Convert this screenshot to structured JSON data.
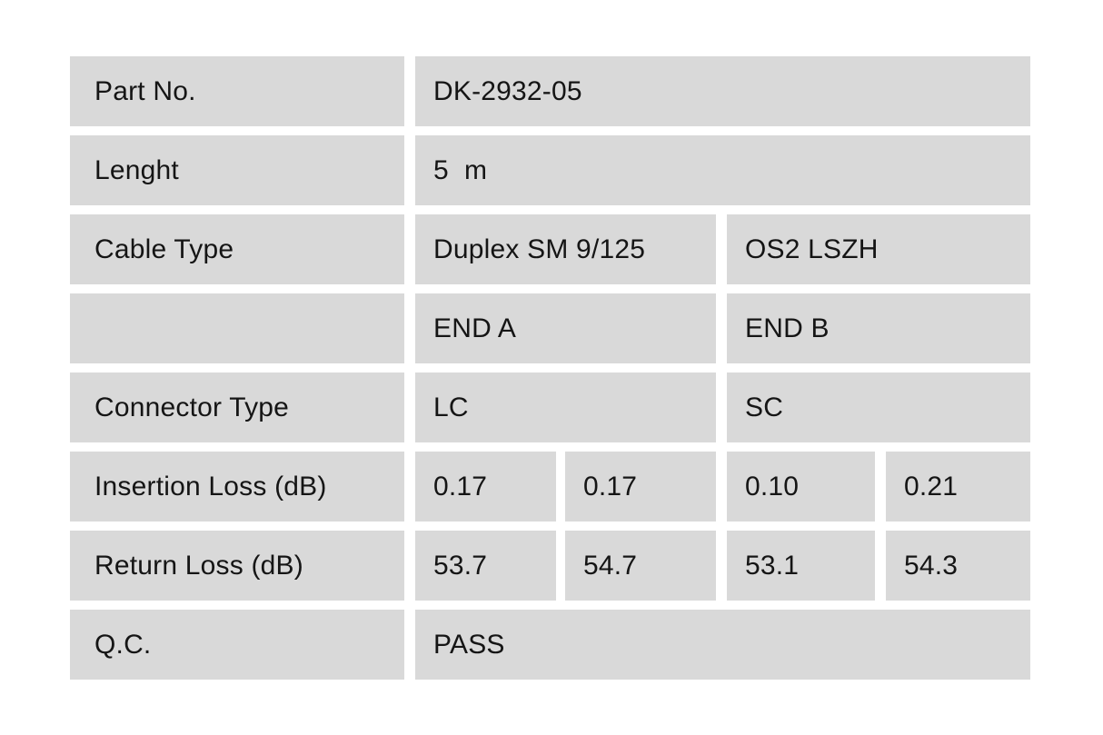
{
  "table": {
    "cell_color": "#d9d9d9",
    "text_color": "#151515",
    "background_color": "#ffffff",
    "rows": [
      {
        "label": "Part No.",
        "values": [
          "DK-2932-05"
        ]
      },
      {
        "label": "Lenght",
        "values": [
          "5  m"
        ]
      },
      {
        "label": "Cable Type",
        "values": [
          "Duplex SM 9/125",
          "OS2 LSZH"
        ]
      },
      {
        "label": "",
        "values": [
          "END A",
          "END B"
        ]
      },
      {
        "label": "Connector Type",
        "values": [
          "LC",
          "SC"
        ]
      },
      {
        "label": "Insertion Loss (dB)",
        "values": [
          "0.17",
          "0.17",
          "0.10",
          "0.21"
        ]
      },
      {
        "label": "Return Loss (dB)",
        "values": [
          "53.7",
          "54.7",
          "53.1",
          "54.3"
        ]
      },
      {
        "label": "Q.C.",
        "values": [
          "PASS"
        ]
      }
    ]
  }
}
